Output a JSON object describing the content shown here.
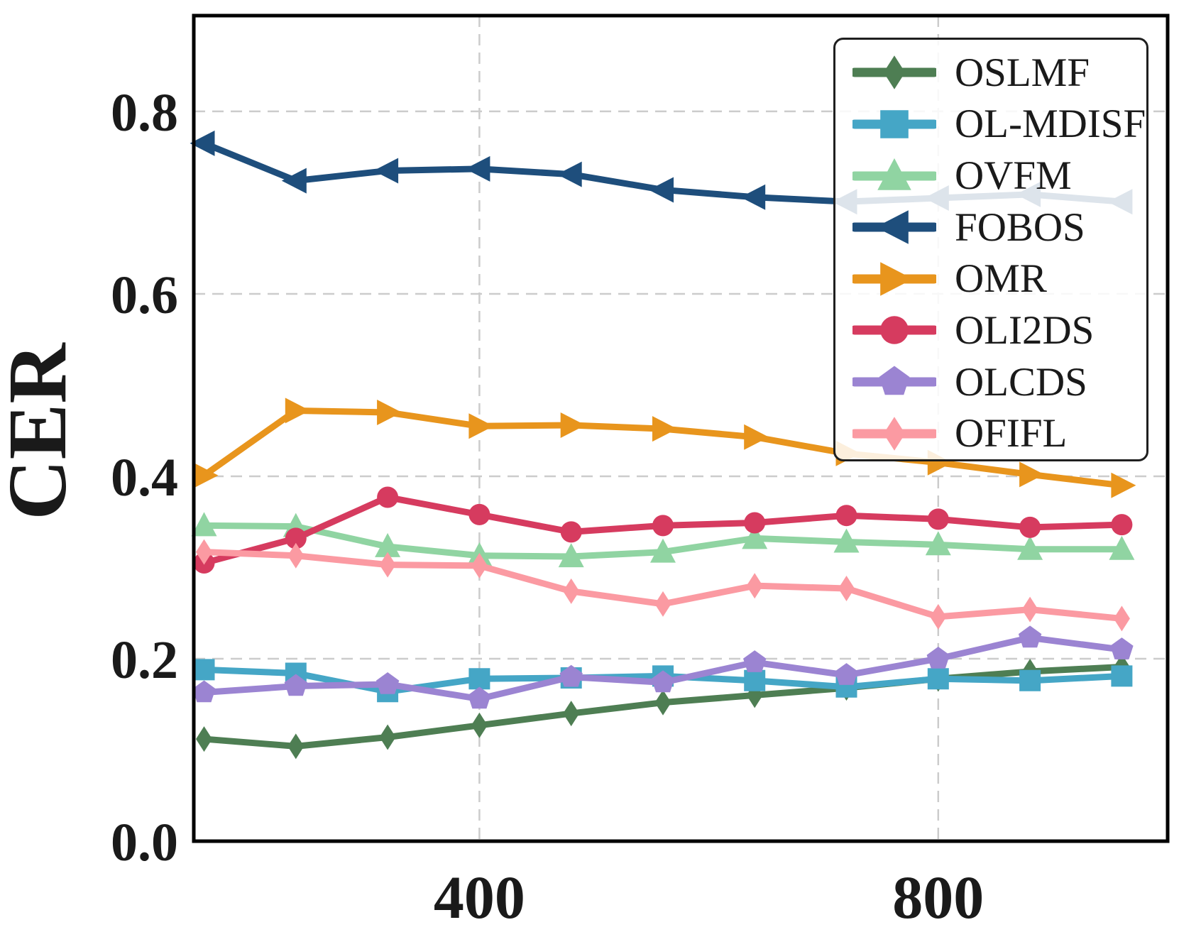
{
  "figure": {
    "background_color": "#ffffff",
    "grid_color": "#cccccc",
    "spine_color": "#000000",
    "text_color": "#1a1a1a"
  },
  "chart_data": {
    "type": "line",
    "title": "",
    "xlabel": "",
    "ylabel": "CER",
    "xlim": [
      151,
      1000
    ],
    "ylim": [
      0,
      0.905
    ],
    "grid": "dashed, both axes, behind data",
    "legend_position": "upper right",
    "x_tick_labels": [
      "400",
      "800"
    ],
    "x_tick_values": [
      400,
      800
    ],
    "y_tick_labels": [
      "0.0",
      "0.2",
      "0.4",
      "0.6",
      "0.8"
    ],
    "y_tick_values": [
      0,
      0.2,
      0.4,
      0.6,
      0.8
    ],
    "x": [
      160,
      240,
      320,
      400,
      480,
      560,
      640,
      720,
      800,
      880,
      960
    ],
    "series": [
      {
        "name": "OSLMF",
        "color": "#4E7E53",
        "marker": "thin-diamond",
        "values": [
          0.112,
          0.104,
          0.114,
          0.127,
          0.14,
          0.152,
          0.16,
          0.168,
          0.178,
          0.186,
          0.191
        ]
      },
      {
        "name": "OL-MDISF",
        "color": "#45A6C6",
        "marker": "square",
        "values": [
          0.188,
          0.184,
          0.164,
          0.178,
          0.179,
          0.181,
          0.176,
          0.169,
          0.178,
          0.176,
          0.181
        ]
      },
      {
        "name": "OVFM",
        "color": "#90D4A2",
        "marker": "triangle-up",
        "values": [
          0.346,
          0.345,
          0.323,
          0.313,
          0.312,
          0.317,
          0.332,
          0.328,
          0.325,
          0.32,
          0.32
        ]
      },
      {
        "name": "FOBOS",
        "color": "#1E4E7C",
        "marker": "triangle-left",
        "values": [
          0.765,
          0.724,
          0.735,
          0.737,
          0.731,
          0.714,
          0.706,
          0.701,
          0.705,
          0.709,
          0.701
        ]
      },
      {
        "name": "OMR",
        "color": "#E8951D",
        "marker": "triangle-right",
        "values": [
          0.401,
          0.472,
          0.47,
          0.455,
          0.456,
          0.452,
          0.443,
          0.425,
          0.415,
          0.402,
          0.39
        ]
      },
      {
        "name": "OLI2DS",
        "color": "#D63B5F",
        "marker": "circle",
        "values": [
          0.305,
          0.332,
          0.377,
          0.358,
          0.339,
          0.346,
          0.349,
          0.357,
          0.353,
          0.344,
          0.347
        ]
      },
      {
        "name": "OLCDS",
        "color": "#9B84D2",
        "marker": "pentagon",
        "values": [
          0.163,
          0.17,
          0.172,
          0.156,
          0.18,
          0.174,
          0.196,
          0.182,
          0.2,
          0.223,
          0.21
        ]
      },
      {
        "name": "OFIFL",
        "color": "#FB9AA2",
        "marker": "thin-diamond",
        "values": [
          0.317,
          0.313,
          0.303,
          0.302,
          0.274,
          0.26,
          0.28,
          0.277,
          0.246,
          0.254,
          0.244
        ]
      }
    ]
  }
}
